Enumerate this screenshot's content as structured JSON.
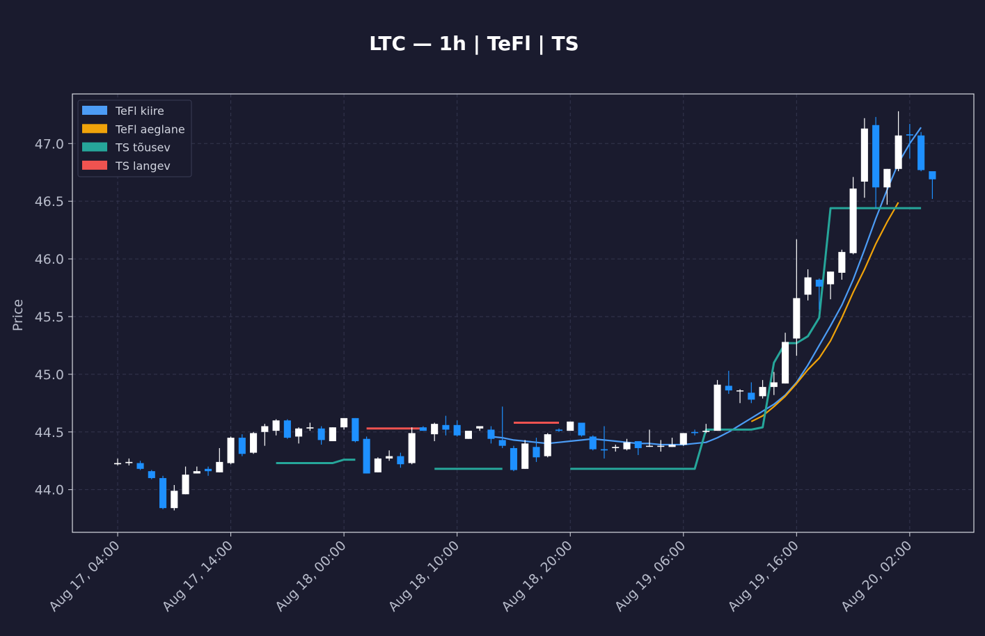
{
  "chart_data": {
    "type": "candlestick",
    "title": "LTC — 1h  |  TeFl  |  TS",
    "ylabel": "Price",
    "xlabel": "",
    "ylim": [
      43.63,
      47.43
    ],
    "xlim": [
      "2017-08-17 00:00",
      "2017-08-20 07:40"
    ],
    "yticks": [
      44.0,
      44.5,
      45.0,
      45.5,
      46.0,
      46.5,
      47.0
    ],
    "xticks": [
      {
        "t": "2017-08-17 04:00",
        "label": "Aug 17, 04:00"
      },
      {
        "t": "2017-08-17 14:00",
        "label": "Aug 17, 14:00"
      },
      {
        "t": "2017-08-18 00:00",
        "label": "Aug 18, 00:00"
      },
      {
        "t": "2017-08-18 10:00",
        "label": "Aug 18, 10:00"
      },
      {
        "t": "2017-08-18 20:00",
        "label": "Aug 18, 20:00"
      },
      {
        "t": "2017-08-19 06:00",
        "label": "Aug 19, 06:00"
      },
      {
        "t": "2017-08-19 16:00",
        "label": "Aug 19, 16:00"
      },
      {
        "t": "2017-08-20 02:00",
        "label": "Aug 20, 02:00"
      }
    ],
    "grid": true,
    "legend_placement": "top-left",
    "colors": {
      "up": "#ffffff",
      "down": "#1e90ff",
      "fast": "#4c9cf5",
      "slow": "#f0a30a",
      "ts_up": "#26a69a",
      "ts_down": "#ef5350"
    },
    "candle_start": "2017-08-17 04:00",
    "candle_interval_hours": 1,
    "candles": [
      [
        44.22,
        44.27,
        44.21,
        44.23
      ],
      [
        44.23,
        44.27,
        44.21,
        44.24
      ],
      [
        44.23,
        44.25,
        44.17,
        44.18
      ],
      [
        44.16,
        44.17,
        44.09,
        44.1
      ],
      [
        44.1,
        44.12,
        43.83,
        43.84
      ],
      [
        43.84,
        44.04,
        43.82,
        43.99
      ],
      [
        43.96,
        44.2,
        43.96,
        44.13
      ],
      [
        44.14,
        44.2,
        44.14,
        44.16
      ],
      [
        44.18,
        44.2,
        44.12,
        44.16
      ],
      [
        44.15,
        44.36,
        44.15,
        44.24
      ],
      [
        44.23,
        44.46,
        44.22,
        44.45
      ],
      [
        44.45,
        44.48,
        44.29,
        44.31
      ],
      [
        44.32,
        44.5,
        44.31,
        44.49
      ],
      [
        44.5,
        44.57,
        44.38,
        44.55
      ],
      [
        44.51,
        44.61,
        44.47,
        44.6
      ],
      [
        44.6,
        44.61,
        44.44,
        44.45
      ],
      [
        44.46,
        44.54,
        44.4,
        44.53
      ],
      [
        44.53,
        44.58,
        44.51,
        44.54
      ],
      [
        44.53,
        44.55,
        44.39,
        44.43
      ],
      [
        44.42,
        44.54,
        44.42,
        44.54
      ],
      [
        44.54,
        44.62,
        44.52,
        44.62
      ],
      [
        44.62,
        44.62,
        44.41,
        44.42
      ],
      [
        44.44,
        44.46,
        44.14,
        44.14
      ],
      [
        44.15,
        44.28,
        44.15,
        44.27
      ],
      [
        44.27,
        44.34,
        44.25,
        44.29
      ],
      [
        44.29,
        44.32,
        44.19,
        44.22
      ],
      [
        44.23,
        44.54,
        44.22,
        44.49
      ],
      [
        44.54,
        44.55,
        44.51,
        44.51
      ],
      [
        44.48,
        44.58,
        44.42,
        44.57
      ],
      [
        44.56,
        44.64,
        44.47,
        44.52
      ],
      [
        44.56,
        44.6,
        44.46,
        44.47
      ],
      [
        44.44,
        44.5,
        44.44,
        44.51
      ],
      [
        44.53,
        44.54,
        44.51,
        44.55
      ],
      [
        44.52,
        44.55,
        44.4,
        44.44
      ],
      [
        44.43,
        44.72,
        44.36,
        44.38
      ],
      [
        44.36,
        44.38,
        44.16,
        44.17
      ],
      [
        44.18,
        44.43,
        44.18,
        44.4
      ],
      [
        44.37,
        44.45,
        44.24,
        44.28
      ],
      [
        44.29,
        44.49,
        44.28,
        44.48
      ],
      [
        44.52,
        44.53,
        44.5,
        44.51
      ],
      [
        44.51,
        44.59,
        44.51,
        44.59
      ],
      [
        44.58,
        44.58,
        44.46,
        44.47
      ],
      [
        44.46,
        44.47,
        44.34,
        44.35
      ],
      [
        44.35,
        44.55,
        44.27,
        44.34
      ],
      [
        44.36,
        44.39,
        44.33,
        44.37
      ],
      [
        44.35,
        44.44,
        44.34,
        44.41
      ],
      [
        44.42,
        44.42,
        44.3,
        44.36
      ],
      [
        44.38,
        44.52,
        44.37,
        44.38
      ],
      [
        44.38,
        44.43,
        44.33,
        44.38
      ],
      [
        44.37,
        44.45,
        44.37,
        44.39
      ],
      [
        44.39,
        44.49,
        44.38,
        44.49
      ],
      [
        44.5,
        44.52,
        44.47,
        44.49
      ],
      [
        44.5,
        44.57,
        44.49,
        44.51
      ],
      [
        44.51,
        44.95,
        44.51,
        44.91
      ],
      [
        44.9,
        45.03,
        44.83,
        44.86
      ],
      [
        44.86,
        44.87,
        44.75,
        44.86
      ],
      [
        44.84,
        44.93,
        44.75,
        44.78
      ],
      [
        44.81,
        44.95,
        44.79,
        44.89
      ],
      [
        44.89,
        45.02,
        44.82,
        44.93
      ],
      [
        44.92,
        45.36,
        44.92,
        45.28
      ],
      [
        45.31,
        46.17,
        45.16,
        45.66
      ],
      [
        45.69,
        45.91,
        45.64,
        45.84
      ],
      [
        45.82,
        45.83,
        45.56,
        45.76
      ],
      [
        45.78,
        45.89,
        45.65,
        45.89
      ],
      [
        45.88,
        46.08,
        45.82,
        46.06
      ],
      [
        46.05,
        46.71,
        46.04,
        46.61
      ],
      [
        46.67,
        47.22,
        46.53,
        47.13
      ],
      [
        47.16,
        47.23,
        46.44,
        46.62
      ],
      [
        46.62,
        46.78,
        46.47,
        46.78
      ],
      [
        46.78,
        47.28,
        46.76,
        47.07
      ],
      [
        47.08,
        47.17,
        46.87,
        47.07
      ],
      [
        47.07,
        47.1,
        46.76,
        46.77
      ],
      [
        46.76,
        46.75,
        46.52,
        46.69
      ]
    ],
    "series": [
      {
        "name": "TeFl kiire",
        "start": "2017-08-18 13:00",
        "values": [
          44.46,
          44.45,
          44.43,
          44.42,
          44.41,
          44.4,
          44.41,
          44.42,
          44.43,
          44.44,
          44.43,
          44.42,
          44.41,
          44.4,
          44.4,
          44.39,
          44.39,
          44.39,
          44.4,
          44.41,
          44.45,
          44.5,
          44.56,
          44.62,
          44.68,
          44.74,
          44.82,
          44.93,
          45.08,
          45.25,
          45.42,
          45.6,
          45.82,
          46.08,
          46.35,
          46.6,
          46.83,
          47.0,
          47.14
        ]
      },
      {
        "name": "TeFl aeglane",
        "start": "2017-08-19 12:00",
        "values": [
          44.59,
          44.64,
          44.72,
          44.81,
          44.92,
          45.04,
          45.14,
          45.29,
          45.49,
          45.71,
          45.91,
          46.13,
          46.32,
          46.49
        ]
      },
      {
        "name": "TS tõusev",
        "segments": [
          {
            "start": "2017-08-17 18:00",
            "values": [
              44.23,
              44.23,
              44.23,
              44.23,
              44.23,
              44.23,
              44.26,
              44.26
            ]
          },
          {
            "start": "2017-08-18 08:00",
            "values": [
              44.18,
              44.18,
              44.18,
              44.18,
              44.18,
              44.18,
              44.18
            ]
          },
          {
            "start": "2017-08-18 20:00",
            "values": [
              44.18,
              44.18,
              44.18,
              44.18,
              44.18,
              44.18,
              44.18,
              44.18,
              44.18,
              44.18,
              44.18,
              44.18,
              44.52,
              44.52,
              44.52,
              44.52,
              44.52,
              44.54,
              45.1,
              45.27,
              45.27,
              45.33,
              45.49,
              46.44,
              46.44,
              46.44,
              46.44,
              46.44,
              46.44,
              46.44,
              46.44,
              46.44
            ]
          }
        ]
      },
      {
        "name": "TS langev",
        "segments": [
          {
            "start": "2017-08-18 02:00",
            "values": [
              44.53,
              44.53,
              44.53,
              44.53,
              44.53,
              44.53
            ]
          },
          {
            "start": "2017-08-18 15:00",
            "values": [
              44.58,
              44.58,
              44.58,
              44.58,
              44.58
            ]
          }
        ]
      }
    ]
  }
}
